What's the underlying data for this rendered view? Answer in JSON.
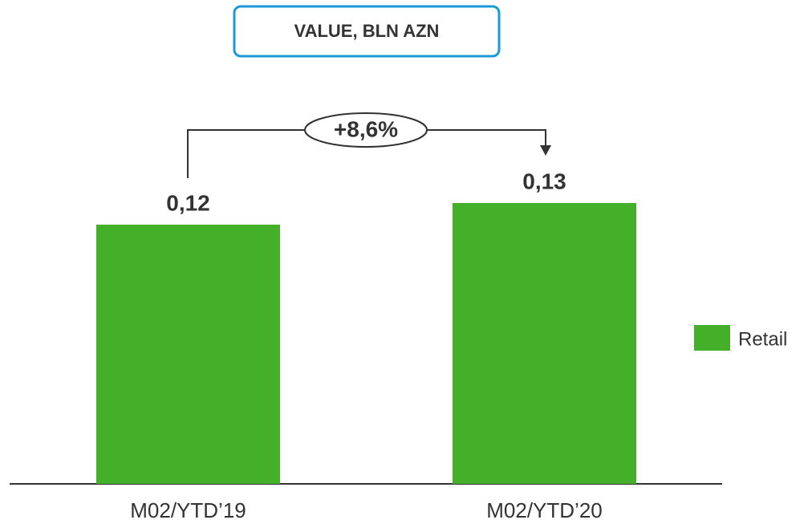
{
  "chart_data": {
    "type": "bar",
    "title": "VALUE, BLN AZN",
    "categories": [
      "M02/YTD’19",
      "M02/YTD’20"
    ],
    "series": [
      {
        "name": "Retail",
        "color": "#44b02a",
        "values": [
          0.12,
          0.13
        ],
        "value_labels": [
          "0,12",
          "0,13"
        ]
      }
    ],
    "annotation": "+8,6%"
  }
}
